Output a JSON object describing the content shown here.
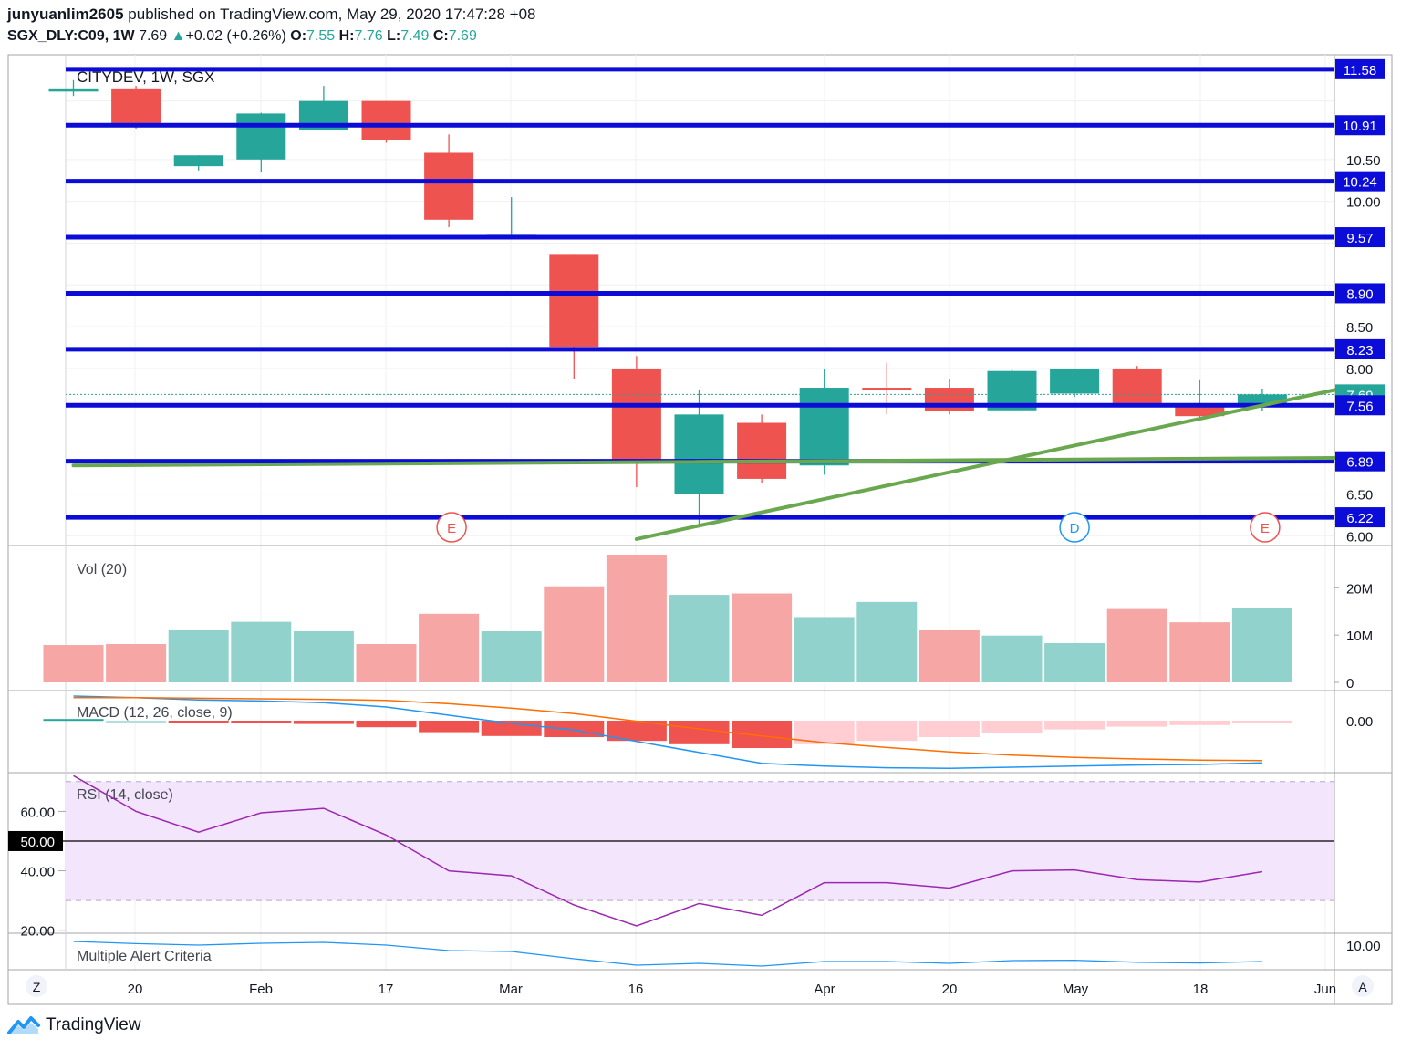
{
  "header": {
    "line1_user": "junyuanlim2605",
    "line1_rest": " published on TradingView.com, May 29, 2020 17:47:28 +08",
    "symbol": "SGX_DLY:C09, 1W",
    "last": "7.69",
    "change": "+0.02 (+0.26%)",
    "o_label": "O:",
    "o": "7.55",
    "h_label": "H:",
    "h": "7.76",
    "l_label": "L:",
    "l": "7.49",
    "c_label": "C:",
    "c": "7.69"
  },
  "footer": {
    "brand": "TradingView"
  },
  "colors": {
    "up": "#26a69a",
    "down": "#ef5350",
    "level_line": "#0c0cd8",
    "trendline": "#6aa84f",
    "rsi": "#9c27b0",
    "macd": "#2196f3",
    "signal": "#ff6d00",
    "rsi_band": "#f3e5fc"
  },
  "chart_data": [
    {
      "type": "candlestick",
      "title": "CITYDEV, 1W, SGX",
      "x_tick_labels": [
        "20",
        "Feb",
        "17",
        "Mar",
        "16",
        "Apr",
        "20",
        "May",
        "18",
        "Jun"
      ],
      "y_tick_labels": [
        "11.58",
        "10.91",
        "10.50",
        "10.24",
        "10.00",
        "9.57",
        "8.90",
        "8.50",
        "8.23",
        "8.00",
        "7.69",
        "7.56",
        "6.89",
        "6.50",
        "6.22",
        "6.00"
      ],
      "ylim": [
        5.97,
        11.72
      ],
      "candles": [
        {
          "o": 11.34,
          "h": 11.45,
          "l": 11.26,
          "c": 11.34
        },
        {
          "o": 11.34,
          "h": 11.38,
          "l": 10.87,
          "c": 10.93
        },
        {
          "o": 10.42,
          "h": 10.55,
          "l": 10.37,
          "c": 10.55
        },
        {
          "o": 10.5,
          "h": 11.06,
          "l": 10.35,
          "c": 11.05
        },
        {
          "o": 10.85,
          "h": 11.38,
          "l": 10.85,
          "c": 11.2
        },
        {
          "o": 11.2,
          "h": 11.2,
          "l": 10.7,
          "c": 10.73
        },
        {
          "o": 10.58,
          "h": 10.8,
          "l": 9.69,
          "c": 9.78
        },
        {
          "o": 9.55,
          "h": 10.05,
          "l": 9.55,
          "c": 9.6
        },
        {
          "o": 9.37,
          "h": 9.37,
          "l": 7.87,
          "c": 8.26
        },
        {
          "o": 8.0,
          "h": 8.15,
          "l": 6.58,
          "c": 6.88
        },
        {
          "o": 6.5,
          "h": 7.75,
          "l": 6.12,
          "c": 7.45
        },
        {
          "o": 7.35,
          "h": 7.45,
          "l": 6.63,
          "c": 6.68
        },
        {
          "o": 6.84,
          "h": 8.0,
          "l": 6.73,
          "c": 7.77
        },
        {
          "o": 7.77,
          "h": 8.07,
          "l": 7.45,
          "c": 7.74
        },
        {
          "o": 7.77,
          "h": 7.87,
          "l": 7.45,
          "c": 7.49
        },
        {
          "o": 7.5,
          "h": 7.99,
          "l": 7.5,
          "c": 7.97
        },
        {
          "o": 7.7,
          "h": 8.0,
          "l": 7.66,
          "c": 8.0
        },
        {
          "o": 8.0,
          "h": 8.03,
          "l": 7.57,
          "c": 7.58
        },
        {
          "o": 7.55,
          "h": 7.86,
          "l": 7.4,
          "c": 7.43
        },
        {
          "o": 7.55,
          "h": 7.76,
          "l": 7.49,
          "c": 7.69
        }
      ],
      "horizontal_levels": [
        11.58,
        10.91,
        10.24,
        9.57,
        8.9,
        8.23,
        7.56,
        6.89,
        6.22
      ],
      "last_price": 7.69,
      "trendlines": [
        {
          "from": {
            "bar": 9.0,
            "price": 5.96
          },
          "to": {
            "bar": 20.2,
            "price": 7.75
          }
        },
        {
          "from": {
            "bar": 0.0,
            "price": 6.84
          },
          "to": {
            "bar": 20.2,
            "price": 6.93
          }
        }
      ],
      "event_markers": [
        {
          "bar": 6.0,
          "label": "E",
          "color": "#ef5350"
        },
        {
          "bar": 16.0,
          "label": "D",
          "color": "#2196f3"
        },
        {
          "bar": 19.0,
          "label": "E",
          "color": "#ef5350"
        }
      ]
    },
    {
      "type": "bar",
      "title": "Vol (20)",
      "y_tick_labels": [
        "20M",
        "10M",
        "0"
      ],
      "ylim": [
        0,
        27000000
      ],
      "values": [
        7900000,
        8100000,
        11000000,
        12800000,
        10800000,
        8100000,
        14500000,
        10800000,
        20300000,
        27000000,
        18500000,
        18800000,
        13800000,
        17000000,
        11000000,
        9900000,
        8300000,
        15500000,
        12700000,
        15700000
      ],
      "directions": [
        "down",
        "down",
        "up",
        "up",
        "up",
        "down",
        "down",
        "up",
        "down",
        "down",
        "up",
        "down",
        "up",
        "up",
        "down",
        "up",
        "up",
        "down",
        "down",
        "up"
      ]
    },
    {
      "type": "line",
      "title": "MACD (12, 26, close, 9)",
      "y_tick_labels": [
        "0.00"
      ],
      "ylim": [
        -0.95,
        0.55
      ],
      "series": [
        {
          "name": "macd",
          "values": [
            0.45,
            0.42,
            0.38,
            0.36,
            0.33,
            0.25,
            0.1,
            -0.05,
            -0.17,
            -0.38,
            -0.58,
            -0.78,
            -0.83,
            -0.86,
            -0.87,
            -0.85,
            -0.83,
            -0.81,
            -0.8,
            -0.77
          ]
        },
        {
          "name": "signal",
          "values": [
            0.42,
            0.42,
            0.41,
            0.4,
            0.39,
            0.37,
            0.31,
            0.23,
            0.13,
            -0.01,
            -0.15,
            -0.28,
            -0.4,
            -0.49,
            -0.57,
            -0.63,
            -0.67,
            -0.7,
            -0.72,
            -0.73
          ]
        },
        {
          "name": "histogram",
          "values": [
            0.03,
            0.0,
            -0.03,
            -0.04,
            -0.06,
            -0.12,
            -0.21,
            -0.28,
            -0.3,
            -0.37,
            -0.43,
            -0.5,
            -0.43,
            -0.37,
            -0.3,
            -0.22,
            -0.16,
            -0.11,
            -0.08,
            -0.04
          ]
        }
      ]
    },
    {
      "type": "line",
      "title": "RSI (14, close)",
      "y_tick_labels": [
        "60.00",
        "50.00",
        "40.00",
        "20.00"
      ],
      "ylim": [
        19,
        73
      ],
      "band": [
        30,
        70
      ],
      "midline": 50,
      "series": [
        {
          "name": "rsi",
          "values": [
            72,
            60,
            53,
            59.5,
            61,
            52,
            40,
            38.3,
            28.5,
            21.5,
            29,
            25,
            36,
            36,
            34.2,
            40,
            40.3,
            37,
            36.2,
            39.7
          ]
        }
      ]
    },
    {
      "type": "line",
      "title": "Multiple Alert Criteria",
      "y_tick_labels": [
        "10.00"
      ],
      "ylim": [
        9.95,
        11.95
      ],
      "series": [
        {
          "name": "alert",
          "values": [
            11.5,
            11.38,
            11.3,
            11.4,
            11.45,
            11.3,
            11.0,
            10.95,
            10.55,
            10.2,
            10.3,
            10.15,
            10.4,
            10.4,
            10.3,
            10.45,
            10.47,
            10.36,
            10.32,
            10.4
          ]
        }
      ]
    }
  ]
}
